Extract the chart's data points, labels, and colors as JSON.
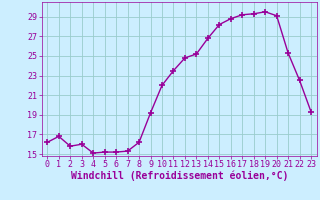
{
  "x": [
    0,
    1,
    2,
    3,
    4,
    5,
    6,
    7,
    8,
    9,
    10,
    11,
    12,
    13,
    14,
    15,
    16,
    17,
    18,
    19,
    20,
    21,
    22,
    23
  ],
  "y": [
    16.2,
    16.8,
    15.8,
    16.0,
    15.1,
    15.2,
    15.2,
    15.3,
    16.2,
    19.2,
    22.0,
    23.5,
    24.8,
    25.2,
    26.8,
    28.2,
    28.8,
    29.2,
    29.3,
    29.5,
    29.1,
    25.3,
    22.5,
    19.3
  ],
  "line_color": "#990099",
  "marker": "+",
  "marker_size": 4,
  "marker_edge_width": 1.2,
  "bg_color": "#cceeff",
  "grid_color": "#99cccc",
  "xlabel": "Windchill (Refroidissement éolien,°C)",
  "xlabel_color": "#990099",
  "tick_color": "#990099",
  "ylim": [
    15,
    30
  ],
  "xlim": [
    -0.5,
    23.5
  ],
  "yticks": [
    15,
    17,
    19,
    21,
    23,
    25,
    27,
    29
  ],
  "xticks": [
    0,
    1,
    2,
    3,
    4,
    5,
    6,
    7,
    8,
    9,
    10,
    11,
    12,
    13,
    14,
    15,
    16,
    17,
    18,
    19,
    20,
    21,
    22,
    23
  ],
  "xlabel_fontsize": 7,
  "tick_fontsize": 6,
  "line_width": 1.0
}
